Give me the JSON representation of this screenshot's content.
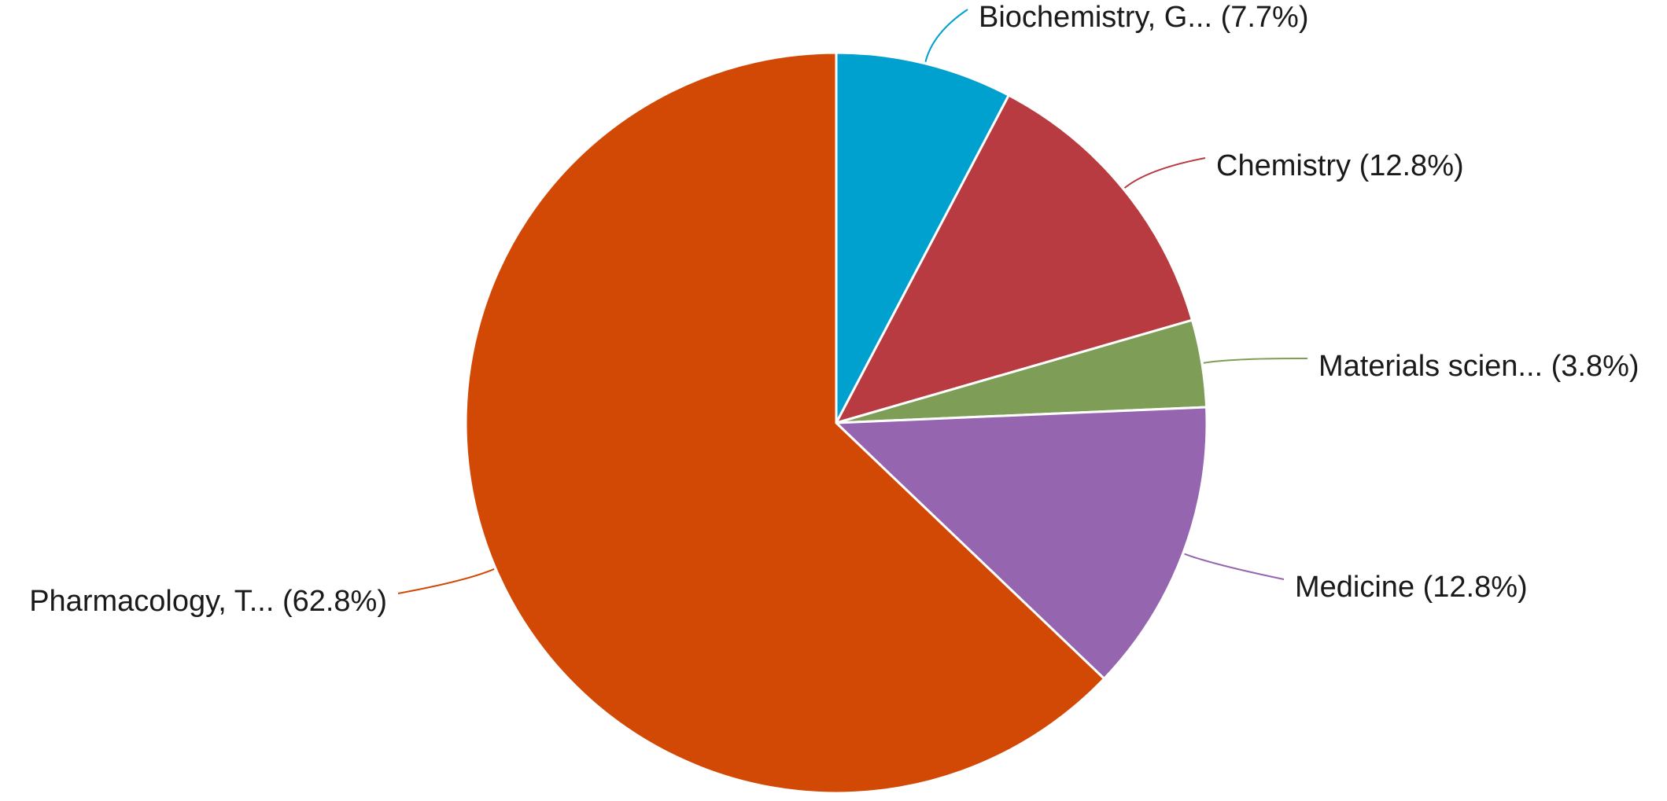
{
  "chart_data": {
    "type": "pie",
    "title": "",
    "start_angle_deg": 0,
    "direction": "clockwise",
    "slices": [
      {
        "label": "Biochemistry, G...",
        "value": 7.7,
        "display": "Biochemistry, G... (7.7%)",
        "color": "#00A0CF"
      },
      {
        "label": "Chemistry",
        "value": 12.8,
        "display": "Chemistry (12.8%)",
        "color": "#B73B41"
      },
      {
        "label": "Materials scien...",
        "value": 3.8,
        "display": "Materials scien... (3.8%)",
        "color": "#7E9E57"
      },
      {
        "label": "Medicine",
        "value": 12.8,
        "display": "Medicine (12.8%)",
        "color": "#9565B0"
      },
      {
        "label": "Pharmacology, T...",
        "value": 62.8,
        "display": "Pharmacology, T... (62.8%)",
        "color": "#D14905"
      }
    ]
  }
}
